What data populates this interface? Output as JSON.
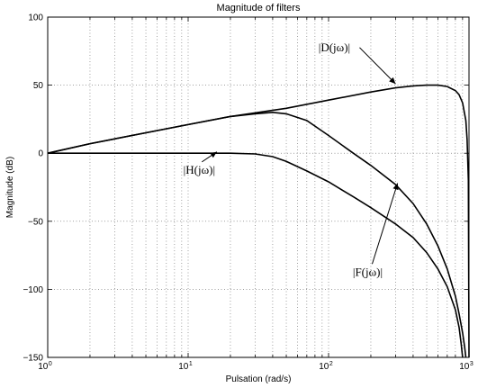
{
  "chart_data": {
    "type": "line",
    "title": "Magnitude of filters",
    "xlabel": "Pulsation (rad/s)",
    "ylabel": "Magnitude (dB)",
    "xscale": "log",
    "xlim": [
      1,
      1000
    ],
    "ylim": [
      -150,
      100
    ],
    "grid": true,
    "x_ticks": [
      {
        "base": "10",
        "exp": "0"
      },
      {
        "base": "10",
        "exp": "1"
      },
      {
        "base": "10",
        "exp": "2"
      },
      {
        "base": "10",
        "exp": "3"
      }
    ],
    "y_ticks": [
      "100",
      "50",
      "0",
      "−50",
      "−100",
      "−150"
    ],
    "y_tick_values": [
      100,
      50,
      0,
      -50,
      -100,
      -150
    ],
    "series": [
      {
        "name": "|D(jω)|",
        "x": [
          1,
          2,
          5,
          10,
          20,
          50,
          100,
          200,
          300,
          400,
          500,
          600,
          700,
          800,
          850,
          900,
          950,
          970,
          990,
          1000
        ],
        "y": [
          0,
          7,
          15,
          21,
          27,
          33,
          39,
          45,
          48,
          49.5,
          50,
          50,
          49,
          46,
          43,
          37,
          24,
          10,
          -20,
          -150
        ]
      },
      {
        "name": "|F(jω)|",
        "x": [
          1,
          2,
          5,
          10,
          20,
          30,
          40,
          50,
          70,
          100,
          150,
          200,
          300,
          400,
          500,
          600,
          700,
          800,
          850,
          900,
          930,
          950
        ],
        "y": [
          0,
          7,
          15,
          21,
          27,
          29,
          30,
          29,
          24,
          13,
          0,
          -9,
          -23,
          -37,
          -52,
          -68,
          -85,
          -105,
          -118,
          -132,
          -142,
          -150
        ]
      },
      {
        "name": "|H(jω)|",
        "x": [
          1,
          5,
          10,
          20,
          30,
          40,
          50,
          70,
          100,
          150,
          200,
          300,
          400,
          500,
          600,
          700,
          800,
          850,
          880,
          900
        ],
        "y": [
          0,
          0,
          0,
          0,
          -0.5,
          -2.5,
          -6,
          -13,
          -21,
          -32,
          -40,
          -52,
          -62,
          -73,
          -85,
          -98,
          -115,
          -128,
          -140,
          -150
        ]
      }
    ],
    "annotations": [
      {
        "text": "|D(jω)|",
        "x": 110,
        "y": 75,
        "arrow_to_x": 300,
        "arrow_to_y": 51
      },
      {
        "text": "|H(jω)|",
        "x": 12,
        "y": -15,
        "arrow_to_x": 16,
        "arrow_to_y": 1
      },
      {
        "text": "|F(jω)|",
        "x": 190,
        "y": -90,
        "arrow_to_x": 310,
        "arrow_to_y": -22
      }
    ]
  }
}
